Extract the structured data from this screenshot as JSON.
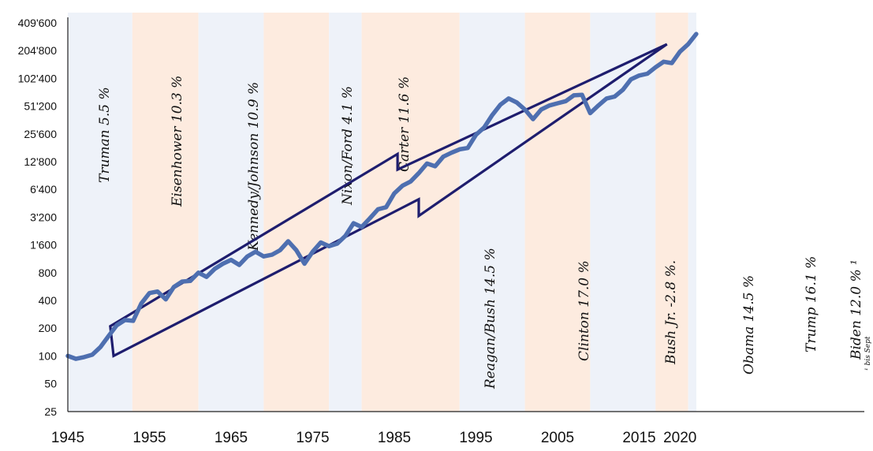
{
  "chart_data": {
    "type": "line",
    "y_scale": "log2",
    "ylim": [
      25,
      409600
    ],
    "xlim": [
      1945,
      2022
    ],
    "y_ticks": [
      "25",
      "50",
      "100",
      "200",
      "400",
      "800",
      "1'600",
      "3'200",
      "6'400",
      "12'800",
      "25'600",
      "51'200",
      "102'400",
      "204'800",
      "409'600"
    ],
    "x_ticks": [
      "1945",
      "1955",
      "1965",
      "1975",
      "1985",
      "1995",
      "2005",
      "2015",
      "2020"
    ],
    "x_tick_values": [
      1945,
      1955,
      1965,
      1975,
      1985,
      1995,
      2005,
      2015,
      2020
    ],
    "series": [
      {
        "color": "#4e6fb0",
        "x": [
          1945,
          1946,
          1947,
          1948,
          1949,
          1950,
          1951,
          1952,
          1953,
          1954,
          1955,
          1956,
          1957,
          1958,
          1959,
          1960,
          1961,
          1962,
          1963,
          1964,
          1965,
          1966,
          1967,
          1968,
          1969,
          1970,
          1971,
          1972,
          1973,
          1974,
          1975,
          1976,
          1977,
          1978,
          1979,
          1980,
          1981,
          1982,
          1983,
          1984,
          1985,
          1986,
          1987,
          1988,
          1989,
          1990,
          1991,
          1992,
          1993,
          1994,
          1995,
          1996,
          1997,
          1998,
          1999,
          2000,
          2001,
          2002,
          2003,
          2004,
          2005,
          2006,
          2007,
          2008,
          2009,
          2010,
          2011,
          2012,
          2013,
          2014,
          2015,
          2016,
          2017,
          2018,
          2019,
          2020,
          2021,
          2022
        ],
        "y": [
          100,
          93,
          97,
          103,
          125,
          165,
          215,
          245,
          240,
          370,
          480,
          500,
          410,
          560,
          640,
          650,
          800,
          720,
          880,
          1000,
          1100,
          970,
          1200,
          1350,
          1200,
          1250,
          1400,
          1750,
          1400,
          1000,
          1350,
          1700,
          1550,
          1650,
          2000,
          2750,
          2500,
          3100,
          3900,
          4100,
          5800,
          7000,
          7800,
          9600,
          12200,
          11400,
          14500,
          16000,
          17400,
          18000,
          25000,
          30000,
          41000,
          53000,
          62000,
          56000,
          47000,
          37000,
          47000,
          52000,
          55000,
          58000,
          67000,
          68000,
          43000,
          52000,
          62000,
          65000,
          77000,
          100000,
          110000,
          115000,
          135000,
          155000,
          150000,
          200000,
          240000,
          310000
        ]
      }
    ],
    "presidencies": [
      {
        "label": "Truman 5.5 %",
        "start": 1945,
        "end": 1952.9
      },
      {
        "label": "Eisenhower 10.3 %",
        "start": 1952.9,
        "end": 1961
      },
      {
        "label": "Kennedy/Johnson 10.9 %",
        "start": 1961,
        "end": 1969
      },
      {
        "label": "Nixon/Ford 4.1 %",
        "start": 1969,
        "end": 1977
      },
      {
        "label": "Carter 11.6 %",
        "start": 1977,
        "end": 1981
      },
      {
        "label": "Reagan/Bush 14.5 %",
        "start": 1981,
        "end": 1993
      },
      {
        "label": "Clinton 17.0 %",
        "start": 1993,
        "end": 2001
      },
      {
        "label": "Bush Jr. -2.8 %.",
        "start": 2001,
        "end": 2009
      },
      {
        "label": "Obama 14.5 %",
        "start": 2009,
        "end": 2017
      },
      {
        "label": "Trump 16.1 %",
        "start": 2017,
        "end": 2021
      },
      {
        "label": "Biden 12.0 % ¹",
        "start": 2021,
        "end": 2022
      }
    ],
    "channel": [
      [
        1950.2,
        210
      ],
      [
        1985.4,
        15500
      ],
      [
        1985.4,
        10500
      ],
      [
        2018.4,
        240000
      ],
      [
        1988,
        3300
      ],
      [
        1988,
        5000
      ],
      [
        1950.6,
        100
      ]
    ],
    "footnote": "¹ bis Sept",
    "colors": {
      "line": "#4e6fb0",
      "channel": "#1e1d6e",
      "band_peach": "#fdebdf",
      "band_blue": "#eef2f9",
      "axis": "#222222"
    }
  }
}
